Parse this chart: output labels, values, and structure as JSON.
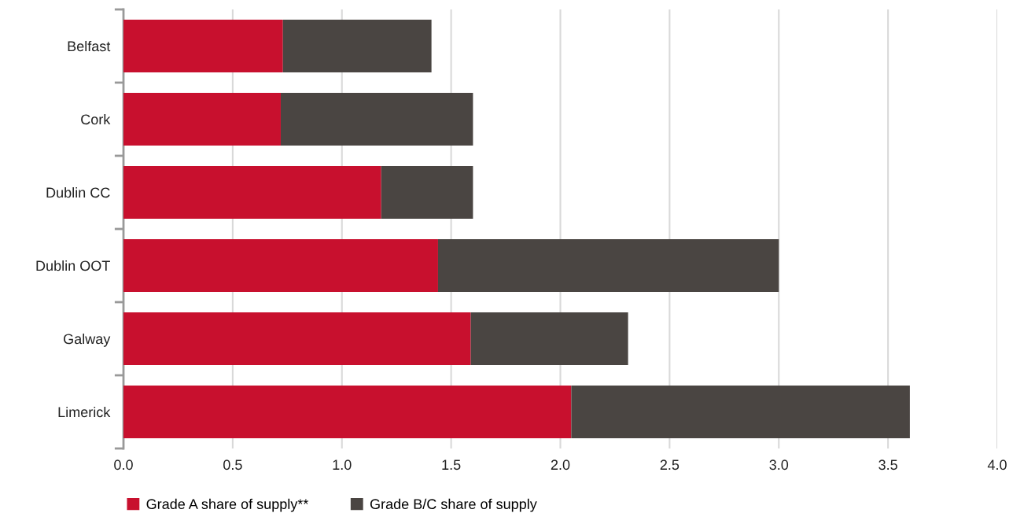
{
  "chart_data": {
    "type": "bar",
    "orientation": "horizontal",
    "stacked": true,
    "categories": [
      "Belfast",
      "Cork",
      "Dublin CC",
      "Dublin OOT",
      "Galway",
      "Limerick"
    ],
    "series": [
      {
        "name": "Grade A share of supply**",
        "color": "#c8102e",
        "values": [
          0.73,
          0.72,
          1.18,
          1.44,
          1.59,
          2.05
        ]
      },
      {
        "name": "Grade B/C share of supply",
        "color": "#4a4542",
        "values": [
          0.68,
          0.88,
          0.42,
          1.56,
          0.72,
          1.55
        ]
      }
    ],
    "xlim": [
      0,
      4.0
    ],
    "xticks": [
      {
        "value": 0,
        "label": "0.0"
      },
      0.5,
      {
        "value": 1,
        "label": "1.0"
      },
      1.5,
      {
        "value": 2,
        "label": "2.0"
      },
      2.5,
      {
        "value": 3,
        "label": "3.0"
      },
      3.5,
      {
        "value": 4,
        "label": "4.0"
      }
    ],
    "grid": "x",
    "legend": "bottom left"
  }
}
